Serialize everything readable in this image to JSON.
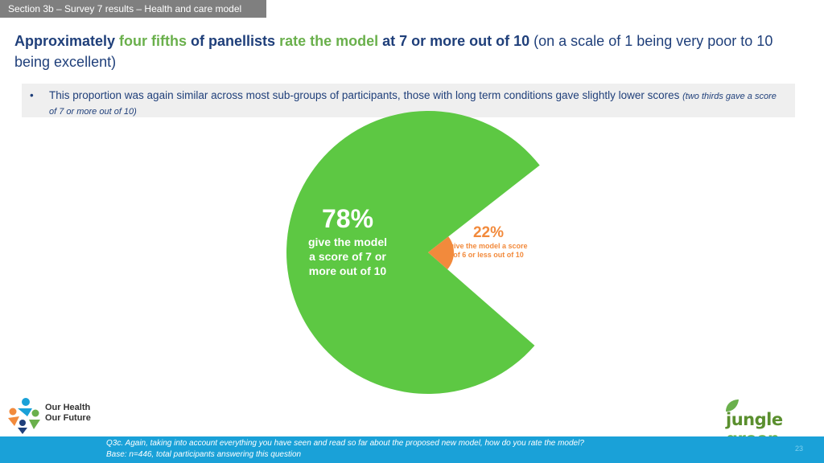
{
  "section_tab": "Section 3b – Survey 7 results – Health and care model",
  "headline": {
    "p1": "Approximately ",
    "p2": "four fifths",
    "p3": " of panellists ",
    "p4": "rate the model",
    "p5": " at 7 or more out of 10",
    "p6": " (on a scale of 1 being very poor to 10 being excellent)"
  },
  "bullet": {
    "marker": "•",
    "text": "This proportion was again similar across most sub-groups of participants, those with long term conditions gave slightly lower scores ",
    "italic": "(two thirds gave a score of 7 or more out of 10)"
  },
  "chart_data": {
    "type": "pie",
    "title": "",
    "slices": [
      {
        "value": 78,
        "pct_label": "78%",
        "label_lines": [
          "give the model",
          "a score of 7 or",
          "more out of 10"
        ],
        "color": "#5dc843"
      },
      {
        "value": 22,
        "pct_label": "22%",
        "label_lines": [
          "give the model a score",
          "of 6 or less out of 10"
        ],
        "color": "#f28a3c"
      }
    ]
  },
  "footnote": {
    "question": "Q3c. Again, taking into account everything you have seen and read so far about the proposed new model, how do you rate the model?",
    "base": "Base: n=446, total participants answering this question"
  },
  "page_number": "23",
  "logo_left": {
    "line1": "Our Health",
    "line2": "Our Future"
  },
  "logo_right": {
    "word1": "jungle",
    "word2": "green"
  },
  "colors": {
    "accent_blue": "#1aa1d8",
    "headline_blue": "#1f3f7a",
    "highlight_green": "#6ab04c"
  }
}
